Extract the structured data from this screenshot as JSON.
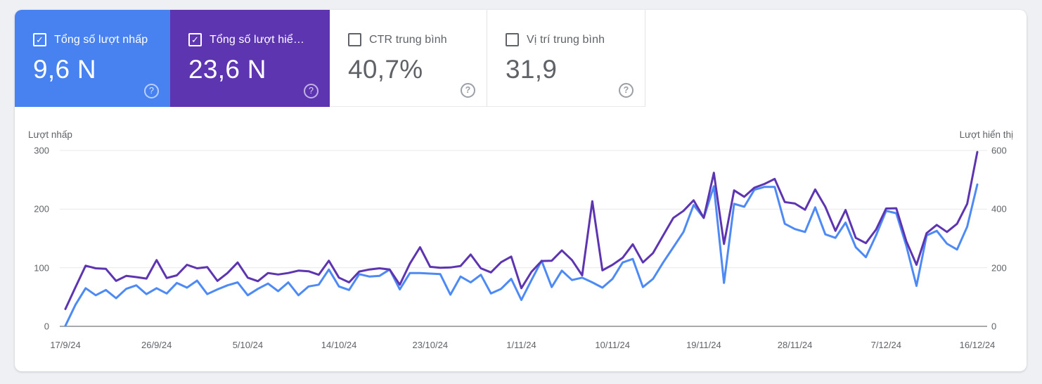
{
  "cards": [
    {
      "id": "clicks",
      "label": "Tổng số lượt nhấp",
      "value": "9,6 N",
      "checked": true,
      "bg": "#4782f0",
      "help_glyph": "?"
    },
    {
      "id": "impressions",
      "label": "Tổng số lượt hiể…",
      "value": "23,6 N",
      "checked": true,
      "bg": "#5e35b1",
      "help_glyph": "?"
    },
    {
      "id": "ctr",
      "label": "CTR trung bình",
      "value": "40,7%",
      "checked": false,
      "help_glyph": "?"
    },
    {
      "id": "position",
      "label": "Vị trí trung bình",
      "value": "31,9",
      "checked": false,
      "help_glyph": "?"
    }
  ],
  "checkmark_glyph": "✓",
  "chart_data": {
    "type": "line",
    "grid": "horizontal-only",
    "legend_position": "none",
    "left_axis": {
      "title": "Lượt nhấp",
      "ticks": [
        300,
        200,
        100,
        0
      ],
      "range": [
        0,
        300
      ]
    },
    "right_axis": {
      "title": "Lượt hiển thị",
      "ticks": [
        600,
        400,
        200,
        0
      ],
      "range": [
        0,
        600
      ]
    },
    "x_tick_labels": [
      "17/9/24",
      "26/9/24",
      "5/10/24",
      "14/10/24",
      "23/10/24",
      "1/11/24",
      "10/11/24",
      "19/11/24",
      "28/11/24",
      "7/12/24",
      "16/12/24"
    ],
    "x_dates": [
      "17/9/24",
      "18/9/24",
      "19/9/24",
      "20/9/24",
      "21/9/24",
      "22/9/24",
      "23/9/24",
      "24/9/24",
      "25/9/24",
      "26/9/24",
      "27/9/24",
      "28/9/24",
      "29/9/24",
      "30/9/24",
      "1/10/24",
      "2/10/24",
      "3/10/24",
      "4/10/24",
      "5/10/24",
      "6/10/24",
      "7/10/24",
      "8/10/24",
      "9/10/24",
      "10/10/24",
      "11/10/24",
      "12/10/24",
      "13/10/24",
      "14/10/24",
      "15/10/24",
      "16/10/24",
      "17/10/24",
      "18/10/24",
      "19/10/24",
      "20/10/24",
      "21/10/24",
      "22/10/24",
      "23/10/24",
      "24/10/24",
      "25/10/24",
      "26/10/24",
      "27/10/24",
      "28/10/24",
      "29/10/24",
      "30/10/24",
      "31/10/24",
      "1/11/24",
      "2/11/24",
      "3/11/24",
      "4/11/24",
      "5/11/24",
      "6/11/24",
      "7/11/24",
      "8/11/24",
      "9/11/24",
      "10/11/24",
      "11/11/24",
      "12/11/24",
      "13/11/24",
      "14/11/24",
      "15/11/24",
      "16/11/24",
      "17/11/24",
      "18/11/24",
      "19/11/24",
      "20/11/24",
      "21/11/24",
      "22/11/24",
      "23/11/24",
      "24/11/24",
      "25/11/24",
      "26/11/24",
      "27/11/24",
      "28/11/24",
      "29/11/24",
      "30/11/24",
      "1/12/24",
      "2/12/24",
      "3/12/24",
      "4/12/24",
      "5/12/24",
      "6/12/24",
      "7/12/24",
      "8/12/24",
      "9/12/24",
      "10/12/24",
      "11/12/24",
      "12/12/24",
      "13/12/24",
      "14/12/24",
      "15/12/24",
      "16/12/24"
    ],
    "series": [
      {
        "id": "clicks-line",
        "name": "Lượt nhấp",
        "axis": "left",
        "color": "#4d8af5",
        "values": [
          1,
          37,
          65,
          53,
          62,
          48,
          64,
          70,
          55,
          65,
          56,
          74,
          66,
          78,
          55,
          63,
          70,
          75,
          53,
          64,
          73,
          60,
          75,
          53,
          68,
          71,
          97,
          68,
          62,
          89,
          85,
          86,
          97,
          63,
          91,
          91,
          90,
          89,
          54,
          85,
          75,
          88,
          56,
          64,
          81,
          45,
          79,
          112,
          67,
          95,
          79,
          83,
          75,
          66,
          81,
          109,
          115,
          67,
          81,
          109,
          135,
          161,
          207,
          185,
          239,
          74,
          209,
          204,
          233,
          238,
          238,
          175,
          166,
          161,
          203,
          157,
          151,
          177,
          135,
          118,
          155,
          197,
          193,
          137,
          69,
          155,
          163,
          141,
          131,
          170,
          242
        ]
      },
      {
        "id": "impressions-line",
        "name": "Lượt hiển thị",
        "axis": "right",
        "color": "#5e35b1",
        "values": [
          59,
          134,
          207,
          198,
          196,
          155,
          172,
          168,
          163,
          226,
          165,
          174,
          210,
          198,
          202,
          155,
          182,
          218,
          166,
          154,
          182,
          177,
          182,
          190,
          188,
          176,
          224,
          166,
          150,
          187,
          194,
          198,
          194,
          142,
          214,
          270,
          203,
          200,
          201,
          206,
          245,
          198,
          184,
          219,
          238,
          130,
          186,
          223,
          224,
          259,
          226,
          174,
          427,
          191,
          210,
          234,
          280,
          218,
          250,
          310,
          370,
          394,
          430,
          370,
          524,
          281,
          464,
          442,
          473,
          486,
          503,
          424,
          419,
          398,
          467,
          408,
          326,
          397,
          302,
          284,
          330,
          402,
          403,
          290,
          210,
          318,
          346,
          322,
          350,
          418,
          595
        ]
      }
    ],
    "gridline_color": "#e8e8e8",
    "zero_axis_color": "#757679"
  }
}
